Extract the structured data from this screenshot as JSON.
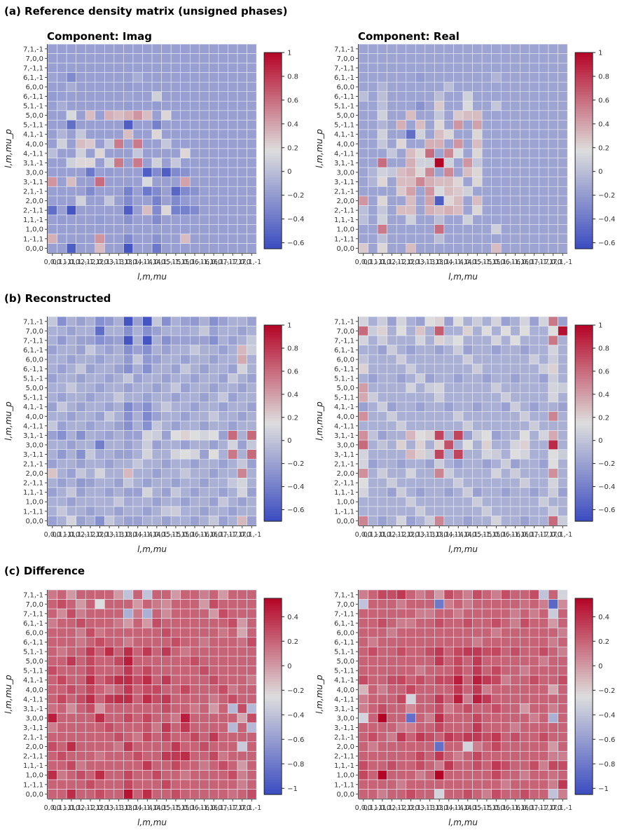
{
  "sections": [
    {
      "title": "(a) Reference density matrix (unsigned phases)"
    },
    {
      "title": "(b) Reconstructed"
    },
    {
      "title": "(c) Difference"
    }
  ],
  "panel_titles": {
    "left": "Component: Imag",
    "right": "Component: Real"
  },
  "colormap": "coolwarm",
  "colors": {
    "low": "#3b4cc0",
    "mid": "#dddddd",
    "high": "#b40426",
    "grid_line": "#e8ecf4"
  },
  "chart_data": [
    {
      "id": "a-imag",
      "type": "heatmap",
      "section": "(a)",
      "title": "Component: Imag",
      "xlabel": "l,m,mu",
      "ylabel": "l,m,mu_p",
      "vmin": -0.65,
      "vmax": 1.0,
      "colorbar_ticks": [
        1,
        0.8,
        0.6,
        0.4,
        0.2,
        0,
        -0.2,
        -0.4,
        -0.6
      ],
      "data": "pattern:a-imag"
    },
    {
      "id": "a-real",
      "type": "heatmap",
      "section": "(a)",
      "title": "Component: Real",
      "xlabel": "l,m,mu",
      "ylabel": "l,m,mu_p",
      "vmin": -0.65,
      "vmax": 1.0,
      "colorbar_ticks": [
        1,
        0.8,
        0.6,
        0.4,
        0.2,
        0,
        -0.2,
        -0.4,
        -0.6
      ],
      "data": "pattern:a-real"
    },
    {
      "id": "b-imag",
      "type": "heatmap",
      "section": "(b)",
      "title": "",
      "xlabel": "l,m,mu",
      "ylabel": "l,m,mu_p",
      "vmin": -0.7,
      "vmax": 1.0,
      "colorbar_ticks": [
        1,
        0.8,
        0.6,
        0.4,
        0.2,
        0,
        -0.2,
        -0.4,
        -0.6
      ],
      "data": "pattern:b-imag"
    },
    {
      "id": "b-real",
      "type": "heatmap",
      "section": "(b)",
      "title": "",
      "xlabel": "l,m,mu",
      "ylabel": "l,m,mu_p",
      "vmin": -0.7,
      "vmax": 1.0,
      "colorbar_ticks": [
        1,
        0.8,
        0.6,
        0.4,
        0.2,
        0,
        -0.2,
        -0.4,
        -0.6
      ],
      "data": "pattern:b-real"
    },
    {
      "id": "c-imag",
      "type": "heatmap",
      "section": "(c)",
      "title": "",
      "xlabel": "l,m,mu",
      "ylabel": "l,m,mu_p",
      "vmin": -1.05,
      "vmax": 0.55,
      "colorbar_ticks": [
        0.4,
        0.2,
        0,
        -0.2,
        -0.4,
        -0.6,
        -0.8,
        -1
      ],
      "data": "pattern:c-imag"
    },
    {
      "id": "c-real",
      "type": "heatmap",
      "section": "(c)",
      "title": "",
      "xlabel": "l,m,mu",
      "ylabel": "l,m,mu_p",
      "vmin": -1.05,
      "vmax": 0.55,
      "colorbar_ticks": [
        0.4,
        0.2,
        0,
        -0.2,
        -0.4,
        -0.6,
        -0.8,
        -1
      ],
      "data": "pattern:c-real"
    }
  ],
  "row_labels_top_to_bottom": [
    "7,1,-1",
    "7,0,0",
    "7,-1,1",
    "6,1,-1",
    "6,0,0",
    "6,-1,1",
    "5,1,-1",
    "5,0,0",
    "5,-1,1",
    "4,1,-1",
    "4,0,0",
    "4,-1,1",
    "3,1,-1",
    "3,0,0",
    "3,-1,1",
    "2,1,-1",
    "2,0,0",
    "2,-1,1",
    "1,1,-1",
    "1,0,0",
    "1,-1,1",
    "0,0,0"
  ],
  "col_labels": [
    "0,0,0",
    "0,1,-1",
    "1,0,0",
    "1,1,-1",
    "2,-1,1",
    "2,0,0",
    "2,1,-1",
    "3,-1,1",
    "3,0,0",
    "3,1,-1",
    "4,-1,1",
    "4,0,0",
    "4,1,-1",
    "5,-1,1",
    "5,0,0",
    "5,1,-1",
    "6,-1,1",
    "6,0,0",
    "6,1,-1",
    "7,-1,1",
    "7,0,0",
    "7,1,-1"
  ]
}
